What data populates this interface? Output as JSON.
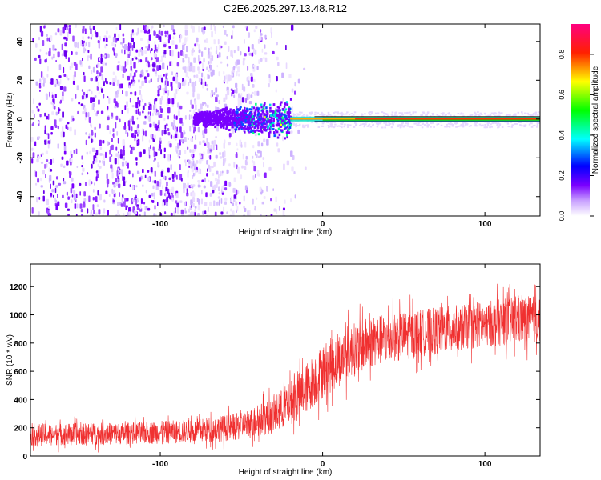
{
  "title": "C2E6.2025.297.13.48.R12",
  "chart_data": [
    {
      "type": "heatmap",
      "name": "spectrogram",
      "xlabel": "Height of straight line (km)",
      "ylabel": "Frequency (Hz)",
      "xlim": [
        -180,
        134
      ],
      "ylim": [
        -50,
        49
      ],
      "xticks": [
        -100,
        0,
        100
      ],
      "yticks": [
        -40,
        -20,
        0,
        20,
        40
      ],
      "colorbar": {
        "label": "Normalized spectral amplitude",
        "range": [
          0,
          0.95
        ],
        "ticks": [
          "0.0",
          "0.2",
          "0.4",
          "0.6",
          "0.8"
        ],
        "tick_values": [
          0.0,
          0.2,
          0.4,
          0.6,
          0.8
        ],
        "colormap": [
          "#ffffff",
          "#7a00ff",
          "#0000ff",
          "#00ffff",
          "#00ff00",
          "#ffff00",
          "#ff0000",
          "#ff0080"
        ]
      },
      "features": {
        "noise_region_x": [
          -180,
          -10
        ],
        "central_line_start_x": -20,
        "central_line_freq": 0,
        "strong_band_x": [
          0,
          134
        ],
        "scatter_blob_x": [
          -80,
          -20
        ]
      }
    },
    {
      "type": "line",
      "name": "snr",
      "xlabel": "Height of straight line (km)",
      "ylabel": "SNR (10 * v/v)",
      "xlim": [
        -180,
        134
      ],
      "ylim": [
        0,
        1360
      ],
      "xticks": [
        -100,
        0,
        100
      ],
      "yticks": [
        0,
        200,
        400,
        600,
        800,
        1000,
        1200
      ],
      "color": "#f03030",
      "trend_x": [
        -180,
        -120,
        -80,
        -50,
        -30,
        -15,
        0,
        15,
        30,
        60,
        90,
        120,
        134
      ],
      "trend_y": [
        150,
        160,
        175,
        210,
        290,
        420,
        600,
        730,
        810,
        870,
        920,
        960,
        970
      ],
      "noise_amplitude": [
        120,
        120,
        130,
        150,
        200,
        260,
        300,
        300,
        280,
        260,
        250,
        260,
        260
      ]
    }
  ]
}
